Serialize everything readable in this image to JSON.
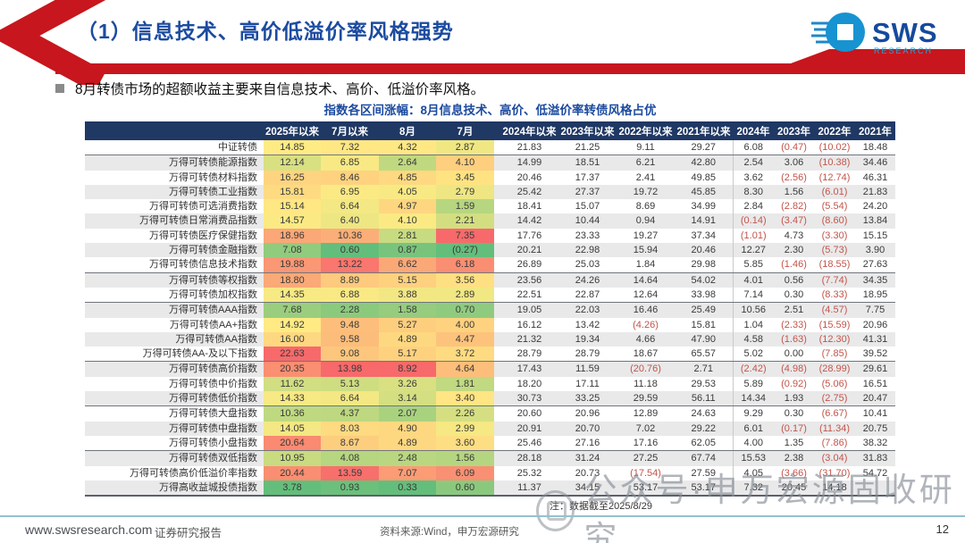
{
  "slide": {
    "title": "（1）信息技术、高价低溢价率风格强势",
    "page_number": "12"
  },
  "logo": {
    "wordmark": "SWS",
    "research": "RESEARCH"
  },
  "bullet": {
    "text": "8月转债市场的超额收益主要来自信息技术、高价、低溢价率风格。"
  },
  "table": {
    "title": "指数各区间涨幅：8月信息技术、高价、低溢价率转债风格占优",
    "note": "注：数据截至2025/8/29",
    "heatmap_column_count": 4,
    "group_breaks_after_row": [
      0,
      8,
      10,
      14,
      17,
      20
    ],
    "columns": [
      "2025年以来",
      "7月以来",
      "8月",
      "7月",
      "2024年以来",
      "2023年以来",
      "2022年以来",
      "2021年以来",
      "2024年",
      "2023年",
      "2022年",
      "2021年"
    ],
    "rows": [
      {
        "label": "中证转债",
        "values": [
          "14.85",
          "7.32",
          "4.32",
          "2.87",
          "21.83",
          "21.25",
          "9.11",
          "29.27",
          "6.08",
          "(0.47)",
          "(10.02)",
          "18.48"
        ]
      },
      {
        "label": "万得可转债能源指数",
        "values": [
          "12.14",
          "6.85",
          "2.64",
          "4.10",
          "14.99",
          "18.51",
          "6.21",
          "42.80",
          "2.54",
          "3.06",
          "(10.38)",
          "34.46"
        ]
      },
      {
        "label": "万得可转债材料指数",
        "values": [
          "16.25",
          "8.46",
          "4.85",
          "3.45",
          "20.46",
          "17.37",
          "2.41",
          "49.85",
          "3.62",
          "(2.56)",
          "(12.74)",
          "46.31"
        ]
      },
      {
        "label": "万得可转债工业指数",
        "values": [
          "15.81",
          "6.95",
          "4.05",
          "2.79",
          "25.42",
          "27.37",
          "19.72",
          "45.85",
          "8.30",
          "1.56",
          "(6.01)",
          "21.83"
        ]
      },
      {
        "label": "万得可转债可选消费指数",
        "values": [
          "15.14",
          "6.64",
          "4.97",
          "1.59",
          "18.41",
          "15.07",
          "8.69",
          "34.99",
          "2.84",
          "(2.82)",
          "(5.54)",
          "24.20"
        ]
      },
      {
        "label": "万得可转债日常消费品指数",
        "values": [
          "14.57",
          "6.40",
          "4.10",
          "2.21",
          "14.42",
          "10.44",
          "0.94",
          "14.91",
          "(0.14)",
          "(3.47)",
          "(8.60)",
          "13.84"
        ]
      },
      {
        "label": "万得可转债医疗保健指数",
        "values": [
          "18.96",
          "10.36",
          "2.81",
          "7.35",
          "17.76",
          "23.33",
          "19.27",
          "37.34",
          "(1.01)",
          "4.73",
          "(3.30)",
          "15.15"
        ]
      },
      {
        "label": "万得可转债金融指数",
        "values": [
          "7.08",
          "0.60",
          "0.87",
          "(0.27)",
          "20.21",
          "22.98",
          "15.94",
          "20.46",
          "12.27",
          "2.30",
          "(5.73)",
          "3.90"
        ]
      },
      {
        "label": "万得可转债信息技术指数",
        "values": [
          "19.88",
          "13.22",
          "6.62",
          "6.18",
          "26.89",
          "25.03",
          "1.84",
          "29.98",
          "5.85",
          "(1.46)",
          "(18.55)",
          "27.63"
        ]
      },
      {
        "label": "万得可转债等权指数",
        "values": [
          "18.80",
          "8.89",
          "5.15",
          "3.56",
          "23.56",
          "24.26",
          "14.64",
          "54.02",
          "4.01",
          "0.56",
          "(7.74)",
          "34.35"
        ]
      },
      {
        "label": "万得可转债加权指数",
        "values": [
          "14.35",
          "6.88",
          "3.88",
          "2.89",
          "22.51",
          "22.87",
          "12.64",
          "33.98",
          "7.14",
          "0.30",
          "(8.33)",
          "18.95"
        ]
      },
      {
        "label": "万得可转债AAA指数",
        "values": [
          "7.68",
          "2.28",
          "1.58",
          "0.70",
          "19.05",
          "22.03",
          "16.46",
          "25.49",
          "10.56",
          "2.51",
          "(4.57)",
          "7.75"
        ]
      },
      {
        "label": "万得可转债AA+指数",
        "values": [
          "14.92",
          "9.48",
          "5.27",
          "4.00",
          "16.12",
          "13.42",
          "(4.26)",
          "15.81",
          "1.04",
          "(2.33)",
          "(15.59)",
          "20.96"
        ]
      },
      {
        "label": "万得可转债AA指数",
        "values": [
          "16.00",
          "9.58",
          "4.89",
          "4.47",
          "21.32",
          "19.34",
          "4.66",
          "47.90",
          "4.58",
          "(1.63)",
          "(12.30)",
          "41.31"
        ]
      },
      {
        "label": "万得可转债AA-及以下指数",
        "values": [
          "22.63",
          "9.08",
          "5.17",
          "3.72",
          "28.79",
          "28.79",
          "18.67",
          "65.57",
          "5.02",
          "0.00",
          "(7.85)",
          "39.52"
        ]
      },
      {
        "label": "万得可转债高价指数",
        "values": [
          "20.35",
          "13.98",
          "8.92",
          "4.64",
          "17.43",
          "11.59",
          "(20.76)",
          "2.71",
          "(2.42)",
          "(4.98)",
          "(28.99)",
          "29.61"
        ]
      },
      {
        "label": "万得可转债中价指数",
        "values": [
          "11.62",
          "5.13",
          "3.26",
          "1.81",
          "18.20",
          "17.11",
          "11.18",
          "29.53",
          "5.89",
          "(0.92)",
          "(5.06)",
          "16.51"
        ]
      },
      {
        "label": "万得可转债低价指数",
        "values": [
          "14.33",
          "6.64",
          "3.14",
          "3.40",
          "30.73",
          "33.25",
          "29.59",
          "56.11",
          "14.34",
          "1.93",
          "(2.75)",
          "20.47"
        ]
      },
      {
        "label": "万得可转债大盘指数",
        "values": [
          "10.36",
          "4.37",
          "2.07",
          "2.26",
          "20.60",
          "20.96",
          "12.89",
          "24.63",
          "9.29",
          "0.30",
          "(6.67)",
          "10.41"
        ]
      },
      {
        "label": "万得可转债中盘指数",
        "values": [
          "14.05",
          "8.03",
          "4.90",
          "2.99",
          "20.91",
          "20.70",
          "7.02",
          "29.22",
          "6.01",
          "(0.17)",
          "(11.34)",
          "20.75"
        ]
      },
      {
        "label": "万得可转债小盘指数",
        "values": [
          "20.64",
          "8.67",
          "4.89",
          "3.60",
          "25.46",
          "27.16",
          "17.16",
          "62.05",
          "4.00",
          "1.35",
          "(7.86)",
          "38.32"
        ]
      },
      {
        "label": "万得可转债双低指数",
        "values": [
          "10.95",
          "4.08",
          "2.48",
          "1.56",
          "28.18",
          "31.24",
          "27.25",
          "67.74",
          "15.53",
          "2.38",
          "(3.04)",
          "31.83"
        ]
      },
      {
        "label": "万得可转债高价低溢价率指数",
        "values": [
          "20.44",
          "13.59",
          "7.07",
          "6.09",
          "25.32",
          "20.73",
          "(17.54)",
          "27.59",
          "4.05",
          "(3.66)",
          "(31.70)",
          "54.72"
        ]
      },
      {
        "label": "万得高收益城投债指数",
        "values": [
          "3.78",
          "0.93",
          "0.33",
          "0.60",
          "11.37",
          "34.15",
          "53.17",
          "53.17",
          "7.32",
          "20.45",
          "14.18",
          ""
        ]
      }
    ]
  },
  "watermark": {
    "text": "公众号·申万宏源固收研究"
  },
  "footer": {
    "url": "www.swsresearch.com",
    "report_label": "证券研究报告",
    "source": "资料来源:Wind，申万宏源研究"
  },
  "colors": {
    "accent_red": "#c7161d",
    "navy_header": "#1f3864",
    "title_blue": "#1c4ba0",
    "negative_red": "#c3554b",
    "heatmap_min": "#63be7b",
    "heatmap_mid": "#ffeb84",
    "heatmap_max": "#f8696b"
  }
}
